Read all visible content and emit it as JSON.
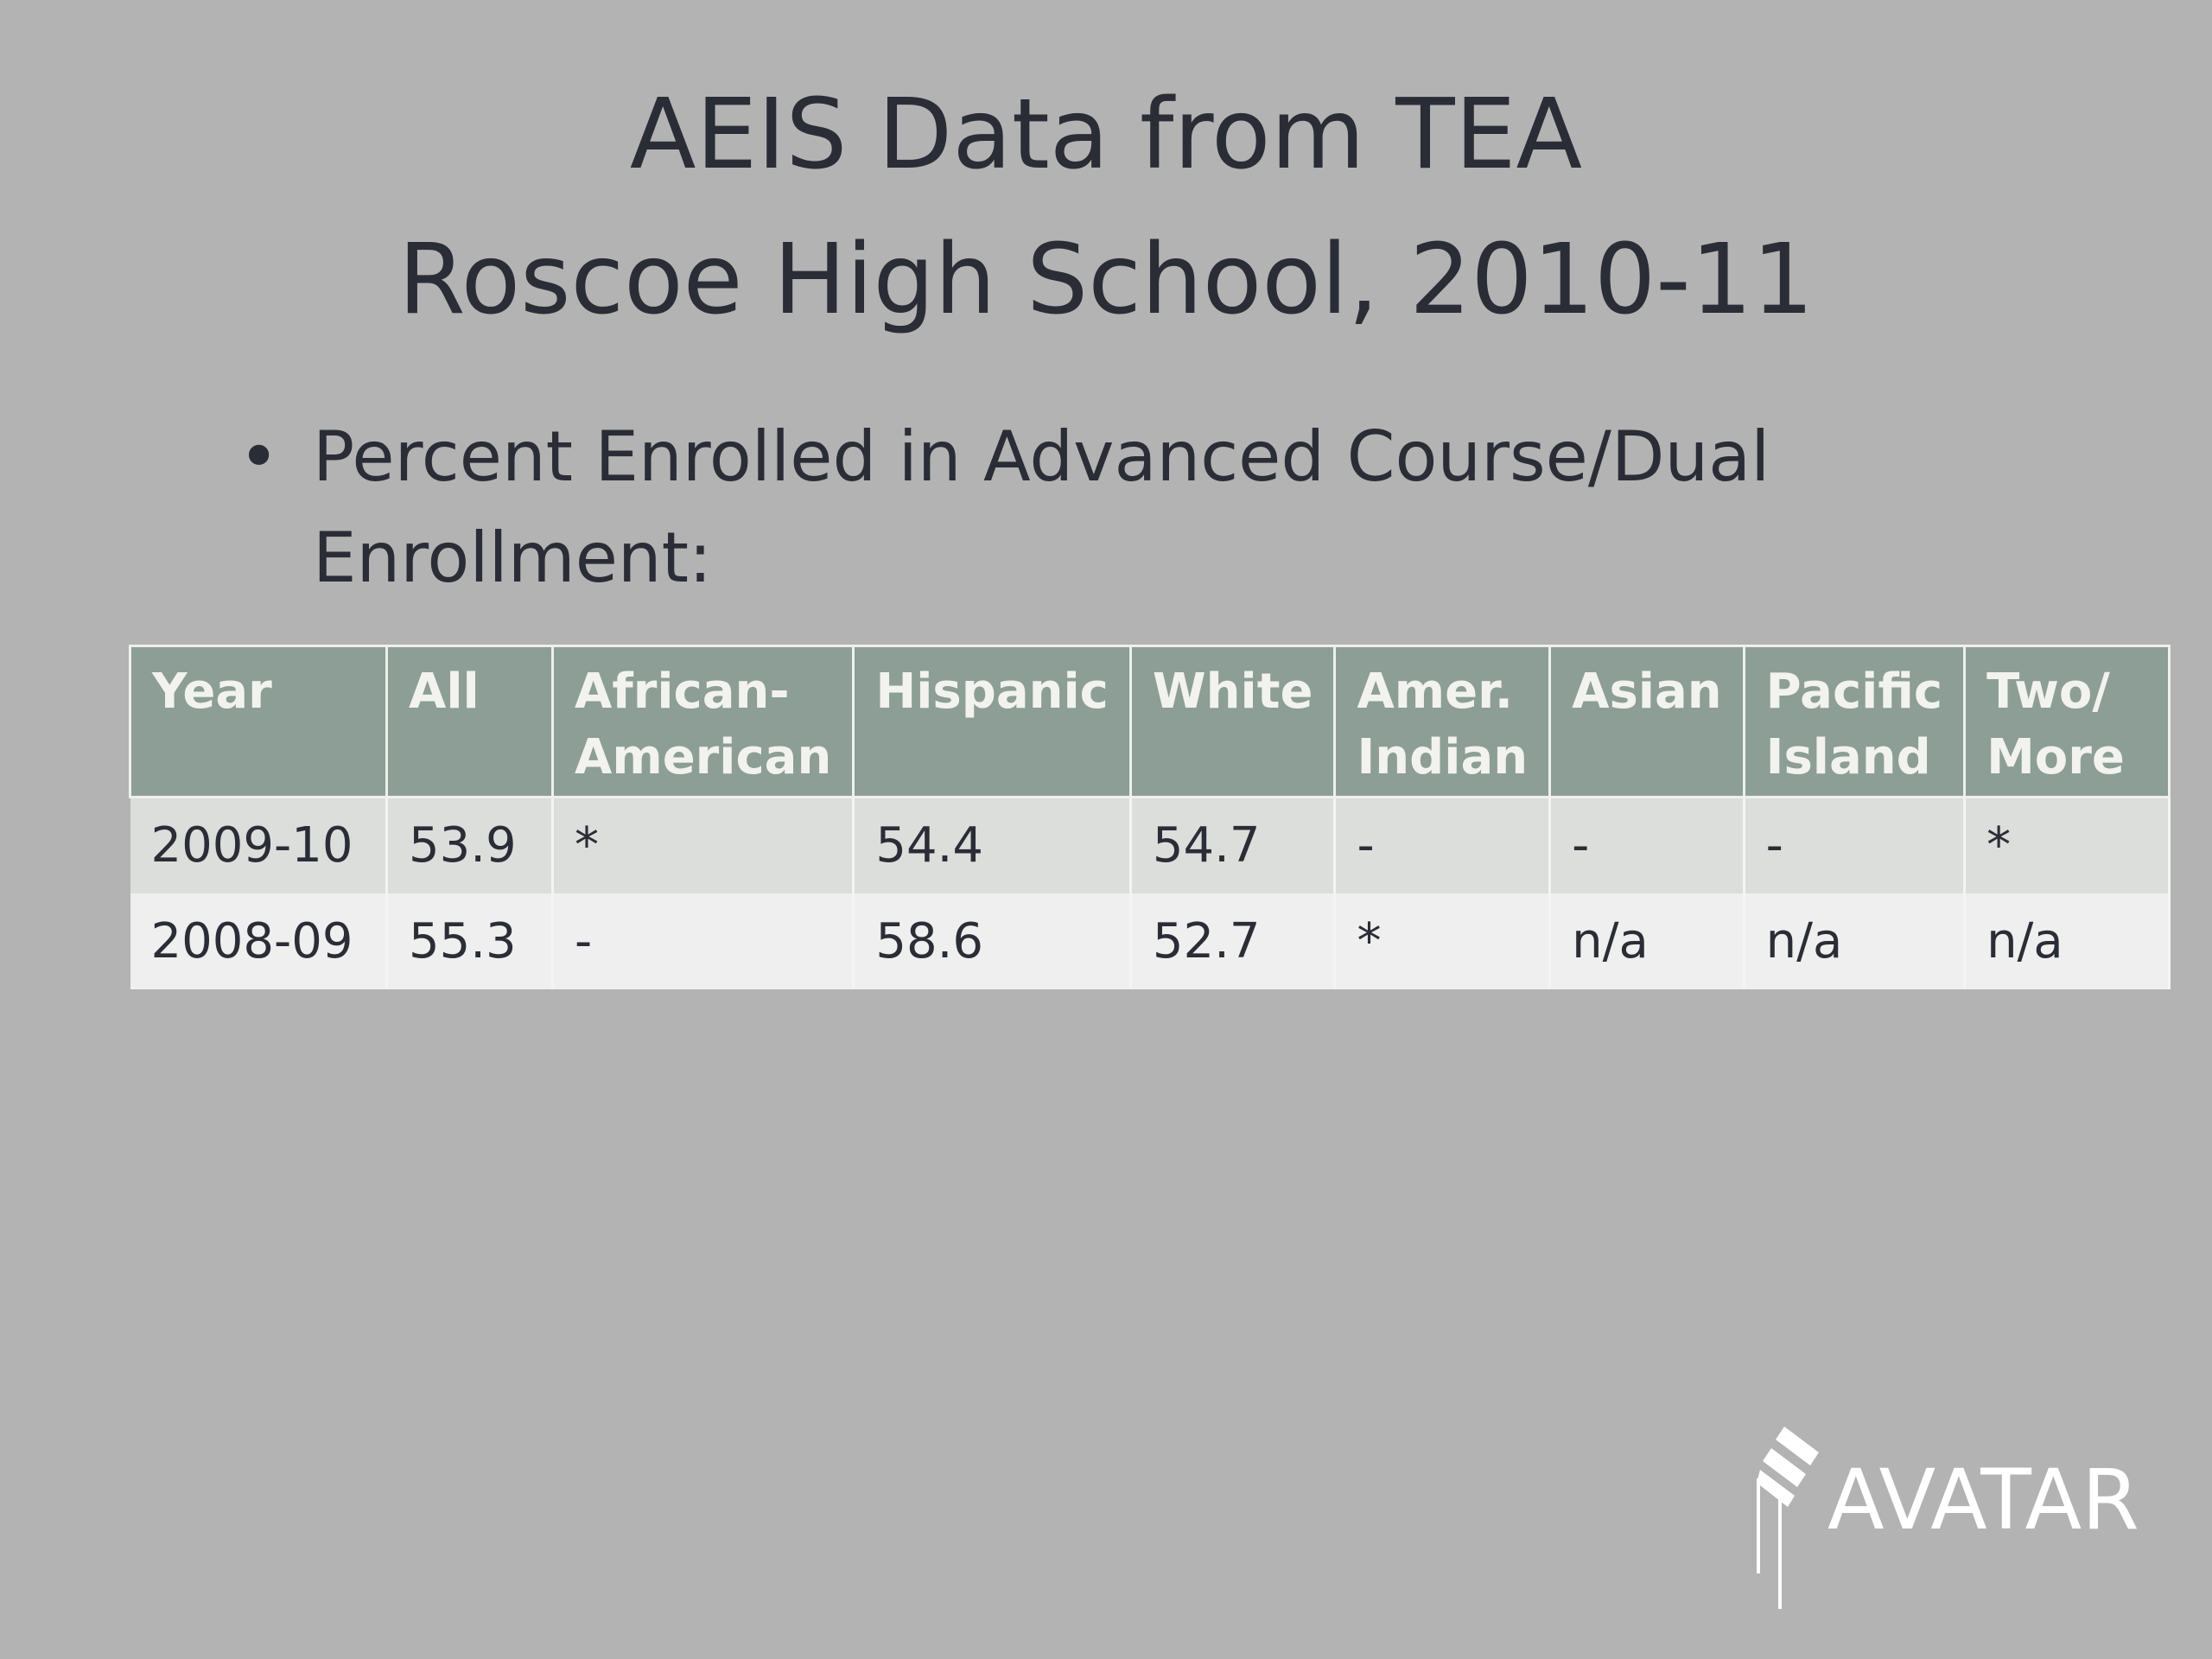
{
  "header": {
    "title_lines": [
      "AEIS Data from TEA",
      "Roscoe High School, 2010-11"
    ]
  },
  "bullet": "Percent  Enrolled in Advanced Course/Dual Enrollment:",
  "table": {
    "columns": [
      "Year",
      "All",
      "African-American",
      "Hispanic",
      "White",
      "Amer. Indian",
      "Asian",
      "Pacific Island",
      "Two/ More"
    ],
    "rows": [
      [
        "2009-10",
        "53.9",
        "*",
        "54.4",
        "54.7",
        "-",
        "-",
        "-",
        "*"
      ],
      [
        "2008-09",
        "55.3",
        "-",
        "58.6",
        "52.7",
        "*",
        "n/a",
        "n/a",
        "n/a"
      ]
    ]
  },
  "logo": {
    "text": "AVATAR"
  }
}
